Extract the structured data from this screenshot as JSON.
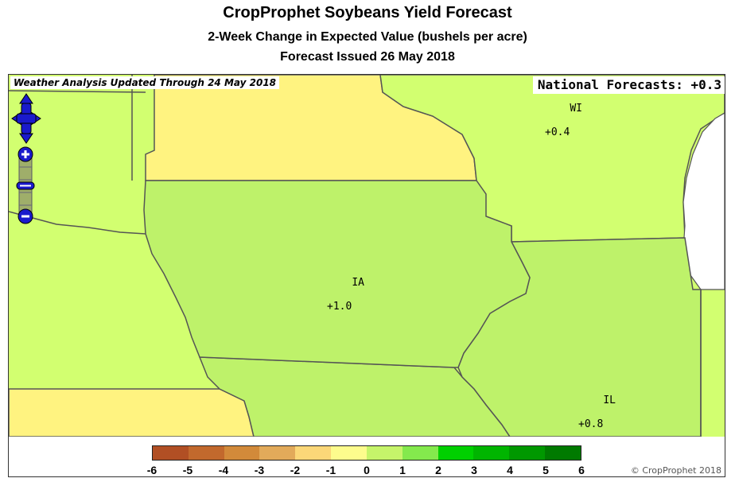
{
  "header": {
    "title": "CropProphet Soybeans Yield Forecast",
    "subtitle": "2-Week Change in Expected Value (bushels per acre)",
    "issued": "Forecast Issued 26 May 2018"
  },
  "map": {
    "weather_banner": "Weather Analysis Updated Through 24 May 2018",
    "national_forecast": "National Forecasts: +0.3",
    "states": [
      {
        "abbr": "IA",
        "value": "+1.0",
        "color": "#bef26a"
      },
      {
        "abbr": "IL",
        "value": "+0.8",
        "color": "#bef26a"
      },
      {
        "abbr": "WI",
        "value": "+0.4",
        "color": "#d2ff70"
      }
    ],
    "other_colors": {
      "mn": "#fff380",
      "northwest": "#d2ff70",
      "southwest": "#fff380",
      "southeast": "#bef26a",
      "lake": "#ffffff"
    },
    "controls": [
      "pan-control",
      "zoom-in",
      "zoom-out"
    ]
  },
  "legend": {
    "ticks": [
      "-6",
      "-5",
      "-4",
      "-3",
      "-2",
      "-1",
      "0",
      "1",
      "2",
      "3",
      "4",
      "5",
      "6"
    ],
    "colors": [
      "#b14f24",
      "#c2692d",
      "#d28a3a",
      "#e2aa5a",
      "#fbd778",
      "#fdfc8d",
      "#c6f46a",
      "#84e94d",
      "#00d000",
      "#00b500",
      "#009800",
      "#007a00"
    ],
    "copyright": "© CropProphet 2018"
  }
}
